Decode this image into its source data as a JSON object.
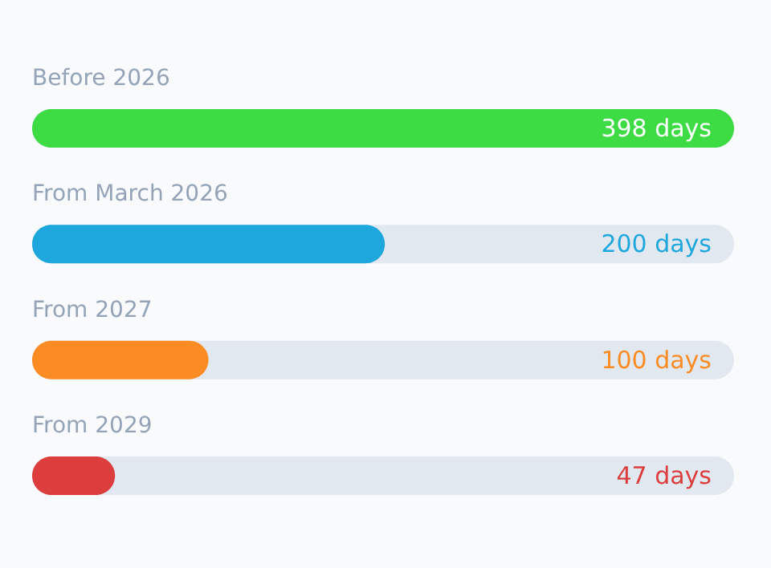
{
  "chart_data": {
    "type": "bar",
    "orientation": "horizontal",
    "categories": [
      "Before 2026",
      "From March 2026",
      "From 2027",
      "From 2029"
    ],
    "values": [
      398,
      200,
      100,
      47
    ],
    "colors": [
      "#3ddc44",
      "#1ea7dc",
      "#fb8c23",
      "#dc3e3e"
    ],
    "value_labels": [
      "398 days",
      "200 days",
      "100 days",
      "47 days"
    ],
    "xlim": [
      0,
      398
    ]
  }
}
